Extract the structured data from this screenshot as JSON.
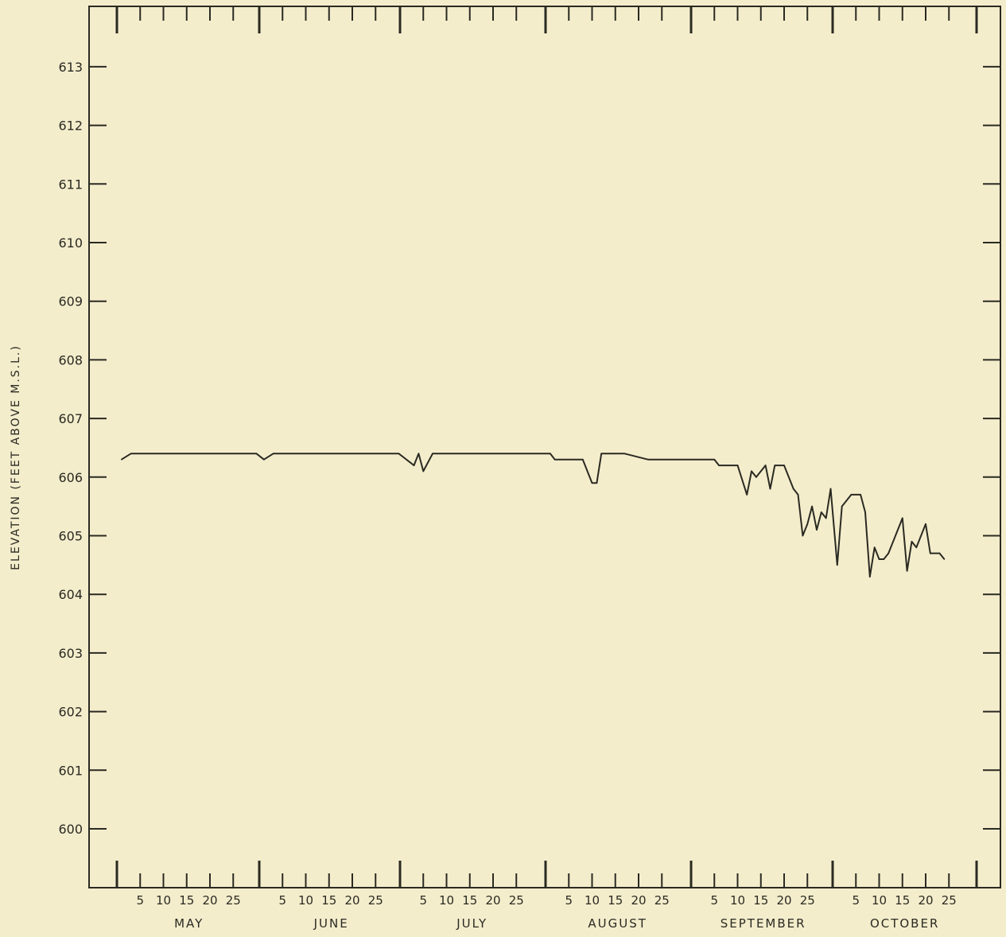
{
  "chart_data": {
    "type": "line",
    "ylabel": "ELEVATION (FEET ABOVE M.S.L.)",
    "xlabel": "",
    "title": "",
    "ylim": [
      599,
      614
    ],
    "yticks": [
      600,
      601,
      602,
      603,
      604,
      605,
      606,
      607,
      608,
      609,
      610,
      611,
      612,
      613
    ],
    "ytick_labels": [
      "600",
      "601",
      "602",
      "603",
      "604",
      "605",
      "606",
      "607",
      "608",
      "609",
      "610",
      "611",
      "612",
      "613"
    ],
    "x_day_ticks": [
      "5",
      "10",
      "15",
      "20",
      "25"
    ],
    "months": [
      "MAY",
      "JUNE",
      "JULY",
      "AUGUST",
      "SEPTEMBER",
      "OCTOBER"
    ],
    "grid": false,
    "series": [
      {
        "points": [
          [
            "May 1",
            606.3
          ],
          [
            "May 3",
            606.4
          ],
          [
            "May 30",
            606.4
          ],
          [
            "Jun 1",
            606.3
          ],
          [
            "Jun 3",
            606.4
          ],
          [
            "Jun 30",
            606.4
          ],
          [
            "Jul 3",
            606.2
          ],
          [
            "Jul 4",
            606.4
          ],
          [
            "Jul 5",
            606.1
          ],
          [
            "Jul 7",
            606.4
          ],
          [
            "Aug 1",
            606.4
          ],
          [
            "Aug 2",
            606.3
          ],
          [
            "Aug 8",
            606.3
          ],
          [
            "Aug 10",
            605.9
          ],
          [
            "Aug 11",
            605.9
          ],
          [
            "Aug 12",
            606.4
          ],
          [
            "Aug 15",
            606.4
          ],
          [
            "Aug 17",
            606.4
          ],
          [
            "Aug 22",
            606.3
          ],
          [
            "Sep 5",
            606.3
          ],
          [
            "Sep 6",
            606.2
          ],
          [
            "Sep 10",
            606.2
          ],
          [
            "Sep 12",
            605.7
          ],
          [
            "Sep 13",
            606.1
          ],
          [
            "Sep 14",
            606.0
          ],
          [
            "Sep 16",
            606.2
          ],
          [
            "Sep 17",
            605.8
          ],
          [
            "Sep 18",
            606.2
          ],
          [
            "Sep 20",
            606.2
          ],
          [
            "Sep 22",
            605.8
          ],
          [
            "Sep 23",
            605.7
          ],
          [
            "Sep 24",
            605.0
          ],
          [
            "Sep 25",
            605.2
          ],
          [
            "Sep 26",
            605.5
          ],
          [
            "Sep 27",
            605.1
          ],
          [
            "Sep 28",
            605.4
          ],
          [
            "Sep 29",
            605.3
          ],
          [
            "Sep 30",
            605.8
          ],
          [
            "Oct 1",
            604.5
          ],
          [
            "Oct 2",
            605.5
          ],
          [
            "Oct 4",
            605.7
          ],
          [
            "Oct 6",
            605.7
          ],
          [
            "Oct 7",
            605.4
          ],
          [
            "Oct 8",
            604.3
          ],
          [
            "Oct 9",
            604.8
          ],
          [
            "Oct 10",
            604.6
          ],
          [
            "Oct 11",
            604.6
          ],
          [
            "Oct 12",
            604.7
          ],
          [
            "Oct 15",
            605.3
          ],
          [
            "Oct 16",
            604.4
          ],
          [
            "Oct 17",
            604.9
          ],
          [
            "Oct 18",
            604.8
          ],
          [
            "Oct 20",
            605.2
          ],
          [
            "Oct 21",
            604.7
          ],
          [
            "Oct 23",
            604.7
          ],
          [
            "Oct 24",
            604.6
          ]
        ]
      }
    ]
  }
}
